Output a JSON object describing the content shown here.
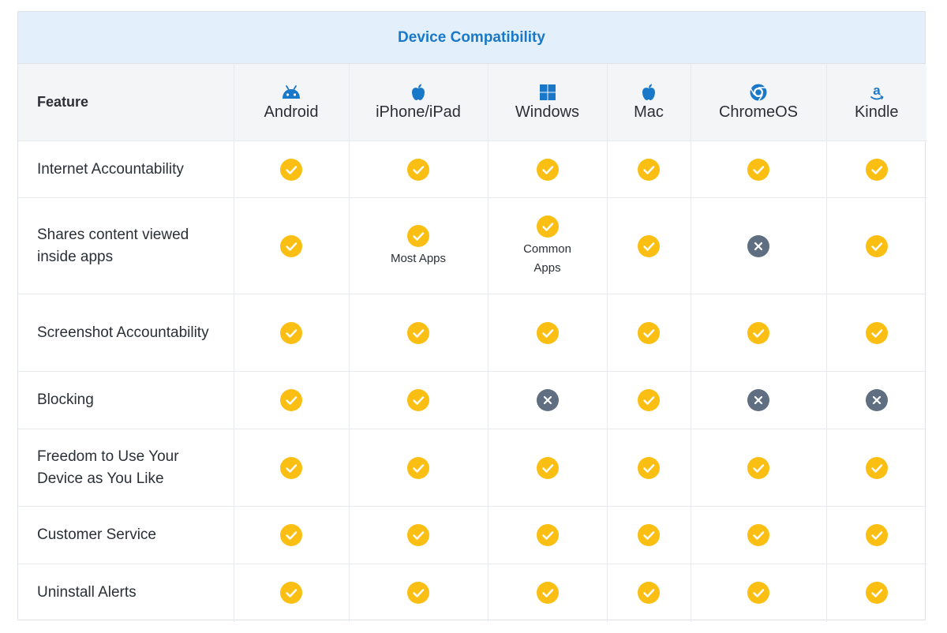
{
  "title": "Device Compatibility",
  "feature_header": "Feature",
  "devices": [
    {
      "label": "Android",
      "icon": "android-icon"
    },
    {
      "label": "iPhone/iPad",
      "icon": "apple-icon"
    },
    {
      "label": "Windows",
      "icon": "windows-icon"
    },
    {
      "label": "Mac",
      "icon": "apple-icon"
    },
    {
      "label": "ChromeOS",
      "icon": "chrome-icon"
    },
    {
      "label": "Kindle",
      "icon": "amazon-icon"
    }
  ],
  "colors": {
    "check": "#fbbf14",
    "cross": "#5f6e80",
    "brand": "#1a78c9",
    "header_bg": "#e3f0fb"
  },
  "rows": [
    {
      "feature": "Internet Accountability",
      "cells": [
        {
          "status": "yes"
        },
        {
          "status": "yes"
        },
        {
          "status": "yes"
        },
        {
          "status": "yes"
        },
        {
          "status": "yes"
        },
        {
          "status": "yes"
        }
      ]
    },
    {
      "feature": "Shares content viewed inside apps",
      "cells": [
        {
          "status": "yes"
        },
        {
          "status": "yes",
          "note": "Most Apps"
        },
        {
          "status": "yes",
          "note": "Common Apps"
        },
        {
          "status": "yes"
        },
        {
          "status": "no"
        },
        {
          "status": "yes"
        }
      ]
    },
    {
      "feature": "Screenshot Accountability",
      "cells": [
        {
          "status": "yes"
        },
        {
          "status": "yes"
        },
        {
          "status": "yes"
        },
        {
          "status": "yes"
        },
        {
          "status": "yes"
        },
        {
          "status": "yes"
        }
      ]
    },
    {
      "feature": "Blocking",
      "cells": [
        {
          "status": "yes"
        },
        {
          "status": "yes"
        },
        {
          "status": "no"
        },
        {
          "status": "yes"
        },
        {
          "status": "no"
        },
        {
          "status": "no"
        }
      ]
    },
    {
      "feature": "Freedom to Use Your Device as You Like",
      "cells": [
        {
          "status": "yes"
        },
        {
          "status": "yes"
        },
        {
          "status": "yes"
        },
        {
          "status": "yes"
        },
        {
          "status": "yes"
        },
        {
          "status": "yes"
        }
      ]
    },
    {
      "feature": "Customer Service",
      "cells": [
        {
          "status": "yes"
        },
        {
          "status": "yes"
        },
        {
          "status": "yes"
        },
        {
          "status": "yes"
        },
        {
          "status": "yes"
        },
        {
          "status": "yes"
        }
      ]
    },
    {
      "feature": "Uninstall Alerts",
      "cells": [
        {
          "status": "yes"
        },
        {
          "status": "yes"
        },
        {
          "status": "yes"
        },
        {
          "status": "yes"
        },
        {
          "status": "yes"
        },
        {
          "status": "yes"
        }
      ]
    }
  ]
}
